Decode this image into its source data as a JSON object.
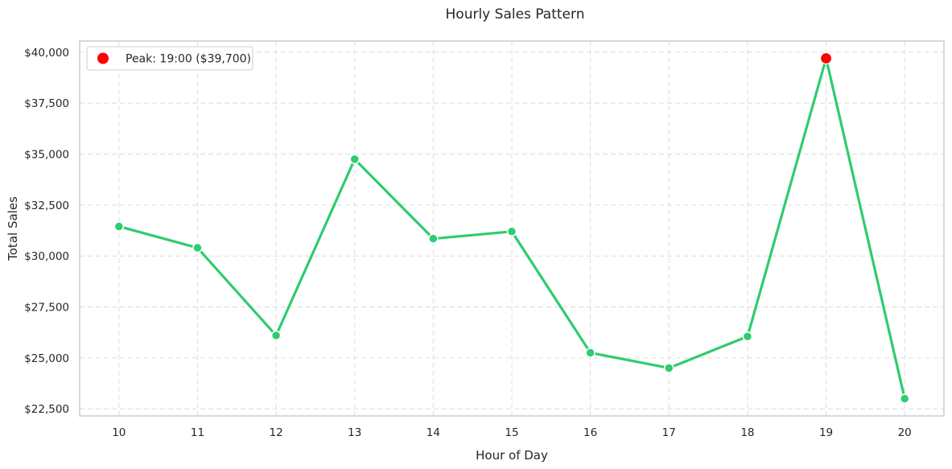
{
  "chart_data": {
    "type": "line",
    "title": "Hourly Sales Pattern",
    "xlabel": "Hour of Day",
    "ylabel": "Total Sales",
    "x": [
      10,
      11,
      12,
      13,
      14,
      15,
      16,
      17,
      18,
      19,
      20
    ],
    "x_tick_labels": [
      "10",
      "11",
      "12",
      "13",
      "14",
      "15",
      "16",
      "17",
      "18",
      "19",
      "20"
    ],
    "series": [
      {
        "values": [
          31450,
          30400,
          26100,
          34750,
          30850,
          31200,
          25250,
          24500,
          26050,
          39700,
          23000
        ],
        "color": "#2ecc71"
      }
    ],
    "y_ticks": [
      22500,
      25000,
      27500,
      30000,
      32500,
      35000,
      37500,
      40000
    ],
    "y_tick_labels": [
      "$22,500",
      "$25,000",
      "$27,500",
      "$30,000",
      "$32,500",
      "$35,000",
      "$37,500",
      "$40,000"
    ],
    "ylim": [
      22150,
      40550
    ],
    "xlim": [
      9.5,
      20.5
    ],
    "grid": true,
    "legend_position": "top-left",
    "peak": {
      "x": 19,
      "y": 39700,
      "label": "Peak: 19:00 ($39,700)",
      "color": "#ff0000"
    }
  }
}
